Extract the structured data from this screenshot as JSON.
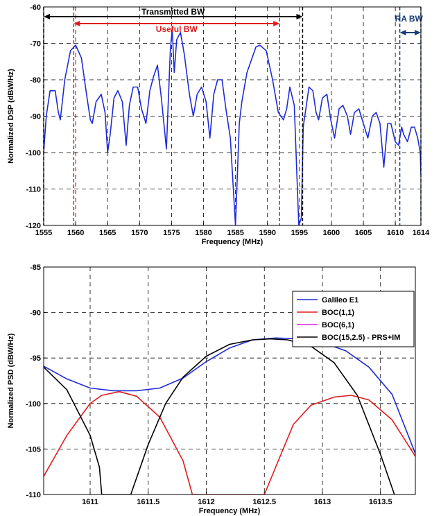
{
  "colors": {
    "blue": "#1f2bd9",
    "red": "#e01c1c",
    "magenta": "#e020e0",
    "black": "#000000",
    "navy": "#1a3c78"
  },
  "chart_data": [
    {
      "type": "line",
      "title": "",
      "xlabel": "Frequency (MHz)",
      "ylabel": "Normalized DSP (dBW/Hz)",
      "xlim": [
        1555,
        1614
      ],
      "ylim": [
        -120,
        -60
      ],
      "xticks": [
        1555,
        1560,
        1565,
        1570,
        1575,
        1580,
        1585,
        1590,
        1595,
        1600,
        1605,
        1610,
        1614
      ],
      "yticks": [
        -60,
        -70,
        -80,
        -90,
        -100,
        -110,
        -120
      ],
      "grid": true,
      "series": [
        {
          "color": "#1f2bd9",
          "x": [
            1555,
            1555.4,
            1556,
            1556.8,
            1557.3,
            1557.6,
            1558.3,
            1559.2,
            1560,
            1560.9,
            1561.7,
            1562.3,
            1562.6,
            1563.2,
            1564,
            1564.6,
            1565,
            1565.4,
            1566,
            1566.6,
            1567.3,
            1567.9,
            1568.4,
            1569,
            1569.7,
            1570.3,
            1571,
            1571.6,
            1572.2,
            1572.8,
            1573.4,
            1574.2,
            1574.8,
            1575.1,
            1575.42,
            1575.8,
            1576.4,
            1577,
            1577.8,
            1578.4,
            1579,
            1579.7,
            1580.4,
            1581,
            1581.6,
            1582.2,
            1582.9,
            1583.5,
            1584.2,
            1585,
            1585.6,
            1586,
            1586.8,
            1587.6,
            1588.2,
            1588.8,
            1589.8,
            1590.8,
            1591.7,
            1592.5,
            1593,
            1593.5,
            1594.2,
            1594.9,
            1595.3,
            1595.6,
            1596.5,
            1597.1,
            1597.6,
            1598,
            1598.6,
            1599.3,
            1599.9,
            1600.5,
            1601.2,
            1601.8,
            1602.5,
            1603,
            1603.6,
            1604.3,
            1605,
            1605.7,
            1606.4,
            1607,
            1607.6,
            1608.2,
            1608.8,
            1609.3,
            1610,
            1610.5,
            1611,
            1611.3,
            1611.9,
            1612.5,
            1613,
            1613.5,
            1613.9,
            1614
          ],
          "y": [
            -100,
            -90,
            -83,
            -83,
            -89,
            -91,
            -80,
            -72,
            -70.5,
            -74,
            -84,
            -91,
            -92,
            -86,
            -84,
            -89,
            -100,
            -95,
            -85,
            -83,
            -86,
            -98,
            -87,
            -82,
            -82,
            -88,
            -92,
            -83,
            -79,
            -76,
            -85,
            -99,
            -72,
            -66,
            -78,
            -69,
            -67,
            -73,
            -84,
            -90,
            -84,
            -82,
            -86,
            -96,
            -84,
            -80,
            -80,
            -88,
            -96,
            -120,
            -92,
            -86,
            -78,
            -74,
            -71,
            -70.5,
            -72,
            -80,
            -89,
            -91,
            -88,
            -82,
            -87,
            -120,
            -118,
            -93,
            -82,
            -83,
            -89,
            -91,
            -85,
            -84,
            -91,
            -96,
            -88,
            -87,
            -90,
            -95,
            -89,
            -88,
            -92,
            -96,
            -90,
            -89,
            -92,
            -104,
            -92,
            -92,
            -97,
            -98,
            -93,
            -95,
            -97,
            -93,
            -93,
            -96,
            -100,
            -106
          ]
        }
      ],
      "annotations": [
        {
          "text": "Transmitted BW",
          "color": "#000000",
          "from": 1555,
          "to": 1595.5
        },
        {
          "text": "Useful BW",
          "color": "#e01c1c",
          "from": 1559.7,
          "to": 1591.9
        },
        {
          "text": "RA BW",
          "color": "#1a3c78",
          "from": 1610.7,
          "to": 1614
        }
      ]
    },
    {
      "type": "line",
      "title": "",
      "xlabel": "Frequency (MHz)",
      "ylabel": "Normalized PSD (dBW/Hz)",
      "xlim": [
        1610.6,
        1613.8
      ],
      "ylim": [
        -110,
        -85
      ],
      "xticks": [
        1611,
        1611.5,
        1612,
        1612.5,
        1613,
        1613.5
      ],
      "xtick_labels": [
        "1611",
        "1611.5",
        "1612",
        "1612.5",
        "1613",
        "1613.5"
      ],
      "yticks": [
        -85,
        -90,
        -95,
        -100,
        -105,
        -110
      ],
      "grid": true,
      "legend": "top-right",
      "legend_entries": [
        "Galileo E1",
        "BOC(1,1)",
        "BOC(6,1)",
        "BOC(15,2.5) - PRS+IM"
      ],
      "series": [
        {
          "name": "Galileo E1",
          "color": "#1f2bd9",
          "x": [
            1610.6,
            1610.8,
            1611,
            1611.2,
            1611.4,
            1611.6,
            1611.8,
            1612,
            1612.2,
            1612.4,
            1612.6,
            1612.8,
            1613,
            1613.2,
            1613.4,
            1613.6,
            1613.8
          ],
          "y": [
            -95.9,
            -97.3,
            -98.3,
            -98.6,
            -98.6,
            -98.3,
            -97.2,
            -95.4,
            -93.9,
            -93.0,
            -92.8,
            -92.9,
            -93.3,
            -94.2,
            -96.0,
            -99.0,
            -105.5
          ]
        },
        {
          "name": "BOC(1,1)",
          "color": "#e01c1c",
          "x": [
            1610.6,
            1610.8,
            1611,
            1611.1,
            1611.25,
            1611.4,
            1611.6,
            1611.8,
            1611.88,
            1612.5,
            1612.62,
            1612.75,
            1612.9,
            1613.1,
            1613.25,
            1613.4,
            1613.6,
            1613.8
          ],
          "y": [
            -108,
            -103.5,
            -100,
            -99.1,
            -98.7,
            -99.2,
            -101.5,
            -106.3,
            -110,
            -110,
            -106.3,
            -102.3,
            -100.2,
            -99.3,
            -99.1,
            -99.6,
            -101.8,
            -105.8
          ]
        },
        {
          "name": "BOC(6,1)",
          "color": "#e020e0",
          "x": [],
          "y": []
        },
        {
          "name": "BOC(15,2.5) - PRS+IM",
          "color": "#000000",
          "x": [
            1610.6,
            1610.8,
            1611,
            1611.08,
            1611.1,
            1611.35,
            1611.5,
            1611.65,
            1611.8,
            1612,
            1612.2,
            1612.4,
            1612.55,
            1612.7,
            1612.9,
            1613.1,
            1613.3,
            1613.5,
            1613.62
          ],
          "y": [
            -96,
            -98.5,
            -103.5,
            -107,
            -110,
            -110,
            -104.5,
            -100,
            -97.1,
            -94.8,
            -93.5,
            -93.0,
            -92.9,
            -93.0,
            -93.7,
            -95.5,
            -99.1,
            -105.6,
            -110
          ]
        }
      ]
    }
  ]
}
